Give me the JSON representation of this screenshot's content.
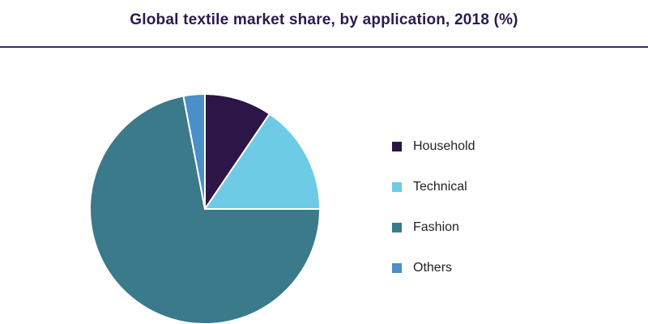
{
  "title": "Global textile market share, by application, 2018 (%)",
  "chart_data": {
    "type": "pie",
    "title": "Global textile market share, by application, 2018 (%)",
    "categories": [
      "Household",
      "Technical",
      "Fashion",
      "Others"
    ],
    "values": [
      9.5,
      15.5,
      72.0,
      3.0
    ],
    "colors": [
      "#2b1647",
      "#6ecbe6",
      "#3a7a8a",
      "#4a8fc8"
    ],
    "legend_position": "right",
    "start_angle_deg": 0,
    "direction": "clockwise"
  }
}
